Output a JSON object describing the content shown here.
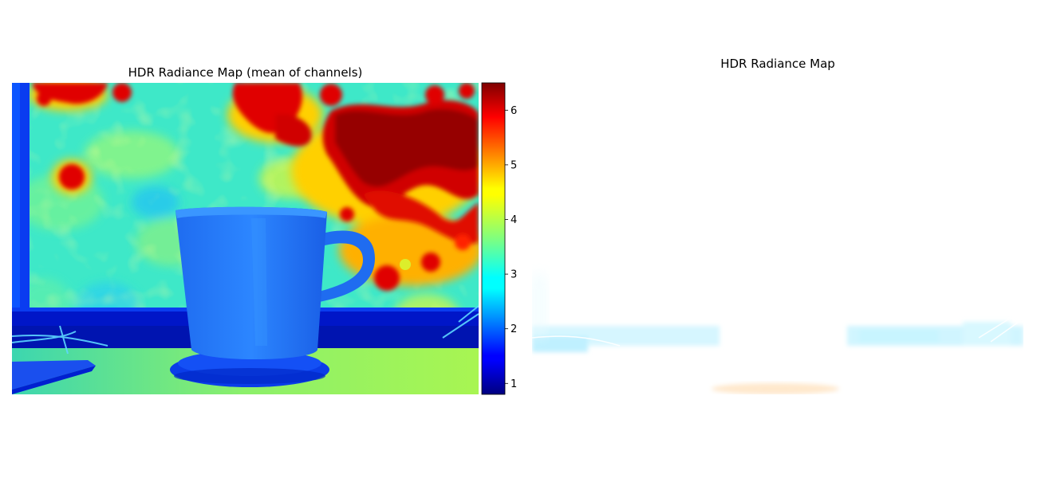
{
  "chart_data": [
    {
      "type": "heatmap",
      "title": "HDR Radiance Map (mean of channels)",
      "colormap": "jet",
      "colorbar": {
        "range": [
          0.8,
          6.5
        ],
        "ticks": [
          1,
          2,
          3,
          4,
          5,
          6
        ],
        "tick_labels": [
          "1",
          "2",
          "3",
          "4",
          "5",
          "6"
        ]
      },
      "axes_visible": false
    },
    {
      "type": "heatmap",
      "title": "HDR Radiance Map",
      "colormap": "rgb-image",
      "axes_visible": false
    }
  ]
}
